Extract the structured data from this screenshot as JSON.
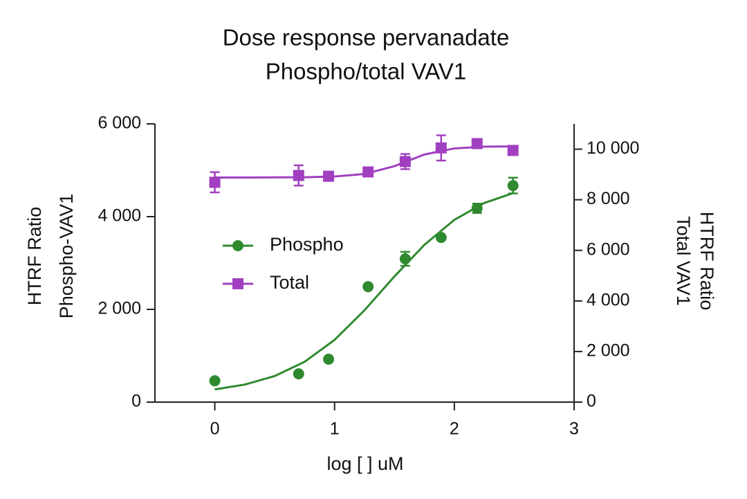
{
  "chart_data": {
    "type": "scatter",
    "title": [
      "Dose response pervanadate",
      "Phospho/total VAV1"
    ],
    "x_label": "log [ ] uM",
    "y_label": [
      "HTRF Ratio",
      "Phospho-VAV1"
    ],
    "y2_label": [
      "HTRF Ratio",
      "Total VAV1"
    ],
    "xlim": [
      -0.5,
      3
    ],
    "xticks": [
      0,
      1,
      2,
      3
    ],
    "ylim": [
      0,
      6000
    ],
    "yticks": [
      0,
      {
        "value": 2000,
        "label": "2 000"
      },
      {
        "value": 4000,
        "label": "4 000"
      },
      {
        "value": 6000,
        "label": "6 000"
      }
    ],
    "y2lim": [
      0,
      11000
    ],
    "y2ticks": [
      0,
      {
        "value": 2000,
        "label": "2 000"
      },
      {
        "value": 4000,
        "label": "4 000"
      },
      {
        "value": 6000,
        "label": "6 000"
      },
      {
        "value": 8000,
        "label": "8 000"
      },
      {
        "value": 10000,
        "label": "10 000"
      }
    ],
    "legend": "left",
    "series": [
      {
        "name": "Phospho",
        "color": "#2f8a2f",
        "marker": "circle",
        "axis": "y",
        "x": [
          0,
          0.7,
          0.95,
          1.28,
          1.59,
          1.89,
          2.19,
          2.49
        ],
        "values": [
          460,
          610,
          925,
          2490,
          3090,
          3550,
          4180,
          4670
        ],
        "errors": [
          null,
          null,
          null,
          null,
          150,
          null,
          100,
          170
        ],
        "fit": {
          "x": [
            0,
            0.25,
            0.5,
            0.75,
            1,
            1.25,
            1.5,
            1.75,
            2,
            2.25,
            2.5
          ],
          "values": [
            274,
            378,
            562,
            870,
            1342,
            1981,
            2710,
            3393,
            3930,
            4294,
            4516
          ]
        }
      },
      {
        "name": "Total",
        "color": "#a040c0",
        "marker": "square",
        "axis": "y2",
        "x": [
          0,
          0.7,
          0.95,
          1.28,
          1.59,
          1.89,
          2.19,
          2.49
        ],
        "values": [
          8690,
          8960,
          8930,
          9100,
          9510,
          10050,
          10220,
          9950
        ],
        "errors": [
          400,
          400,
          null,
          null,
          300,
          500,
          null,
          null
        ],
        "fit": {
          "x": [
            0,
            0.25,
            0.5,
            0.75,
            1,
            1.25,
            1.5,
            1.75,
            2,
            2.25,
            2.5
          ],
          "values": [
            8880,
            8880,
            8885,
            8890,
            8920,
            9020,
            9330,
            9790,
            10030,
            10100,
            10110
          ]
        }
      }
    ]
  }
}
